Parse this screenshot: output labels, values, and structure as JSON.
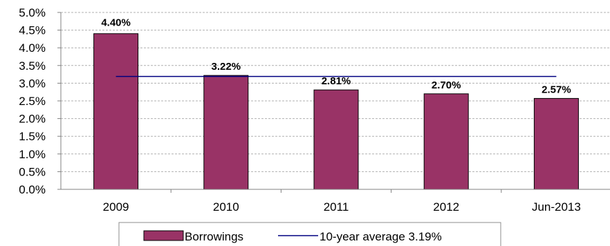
{
  "chart_data": {
    "type": "bar",
    "categories": [
      "2009",
      "2010",
      "2011",
      "2012",
      "Jun-2013"
    ],
    "series": [
      {
        "name": "Borrowings",
        "values": [
          4.4,
          3.22,
          2.81,
          2.7,
          2.57
        ]
      }
    ],
    "data_labels": [
      "4.40%",
      "3.22%",
      "2.81%",
      "2.70%",
      "2.57%"
    ],
    "reference_line": {
      "name": "10-year average 3.19%",
      "value": 3.19
    },
    "y_ticks": [
      "0.0%",
      "0.5%",
      "1.0%",
      "1.5%",
      "2.0%",
      "2.5%",
      "3.0%",
      "3.5%",
      "4.0%",
      "4.5%",
      "5.0%"
    ],
    "ylim": [
      0,
      5
    ],
    "grid": true,
    "legend_position": "bottom",
    "colors": {
      "bar": "#993366",
      "line": "#000080",
      "grid": "#b0b0b0",
      "axis": "#808080"
    }
  }
}
